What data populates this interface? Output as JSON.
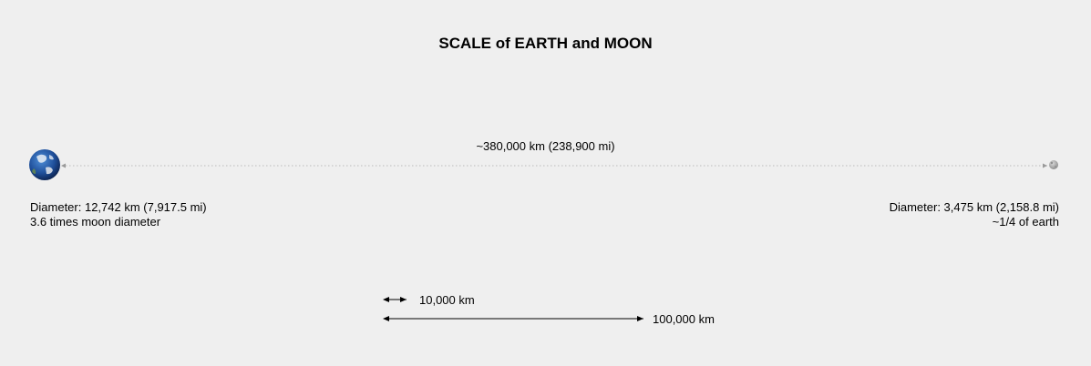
{
  "title": "SCALE of EARTH and MOON",
  "distance": {
    "label": "~380,000 km (238,900 mi)",
    "value_km": 380000
  },
  "earth": {
    "diameter_text": "Diameter: 12,742 km (7,917.5 mi)",
    "comparison_text": "3.6 times moon diameter",
    "diameter_km": 12742
  },
  "moon": {
    "diameter_text": "Diameter: 3,475 km (2,158.8 mi)",
    "comparison_text": "~1/4 of earth",
    "diameter_km": 3475
  },
  "scale_bars": [
    {
      "label": "10,000 km",
      "value_km": 10000
    },
    {
      "label": "100,000 km",
      "value_km": 100000
    }
  ],
  "colors": {
    "background": "#efefef",
    "dotted_line": "#bbbbbb",
    "ocean": "#1f4f9a",
    "moon": "#a9a9a9"
  }
}
